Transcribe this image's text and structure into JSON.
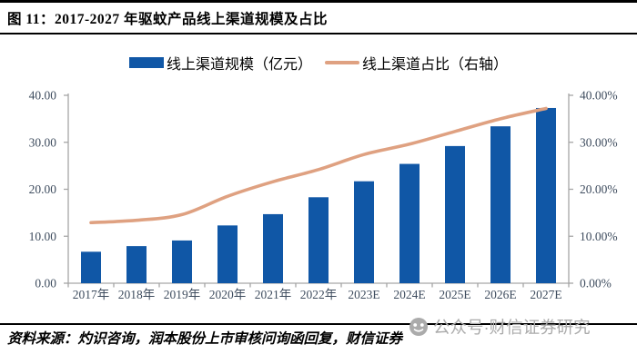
{
  "figure": {
    "title": "图 11：2017-2027 年驱蚊产品线上渠道规模及占比",
    "source": "资料来源：灼识咨询，润本股份上市审核问询函回复，财信证券",
    "watermark": "公众号·财信证券研究"
  },
  "legend": {
    "bar_label": "线上渠道规模（亿元）",
    "line_label": "线上渠道占比（右轴）"
  },
  "colors": {
    "bar": "#1057A6",
    "line": "#DFA181",
    "axis": "#A6A6A6",
    "tick_text": "#3E4C5E",
    "watermark": "#ABABAB"
  },
  "chart_data": {
    "type": "bar",
    "subtype": "bar+line-dual-axis",
    "title": "2017-2027 年驱蚊产品线上渠道规模及占比",
    "categories": [
      "2017年",
      "2018年",
      "2019年",
      "2020年",
      "2021年",
      "2022年",
      "2023E",
      "2024E",
      "2025E",
      "2026E",
      "2027E"
    ],
    "series": [
      {
        "name": "线上渠道规模（亿元）",
        "type": "bar",
        "axis": "left",
        "color": "#1057A6",
        "values": [
          6.7,
          7.9,
          9.1,
          12.3,
          14.7,
          18.3,
          21.7,
          25.4,
          29.2,
          33.4,
          37.3
        ]
      },
      {
        "name": "线上渠道占比（右轴）",
        "type": "line",
        "axis": "right",
        "color": "#DFA181",
        "values": [
          12.9,
          13.4,
          14.6,
          18.5,
          21.6,
          24.2,
          27.4,
          29.6,
          32.3,
          35.0,
          37.2
        ]
      }
    ],
    "left_axis": {
      "min": 0,
      "max": 40,
      "ticks": [
        "0.00",
        "10.00",
        "20.00",
        "30.00",
        "40.00"
      ]
    },
    "right_axis": {
      "min": 0,
      "max": 40,
      "ticks": [
        "0.00%",
        "10.00%",
        "20.00%",
        "30.00%",
        "40.00%"
      ]
    },
    "grid": false,
    "legend_position": "top"
  }
}
